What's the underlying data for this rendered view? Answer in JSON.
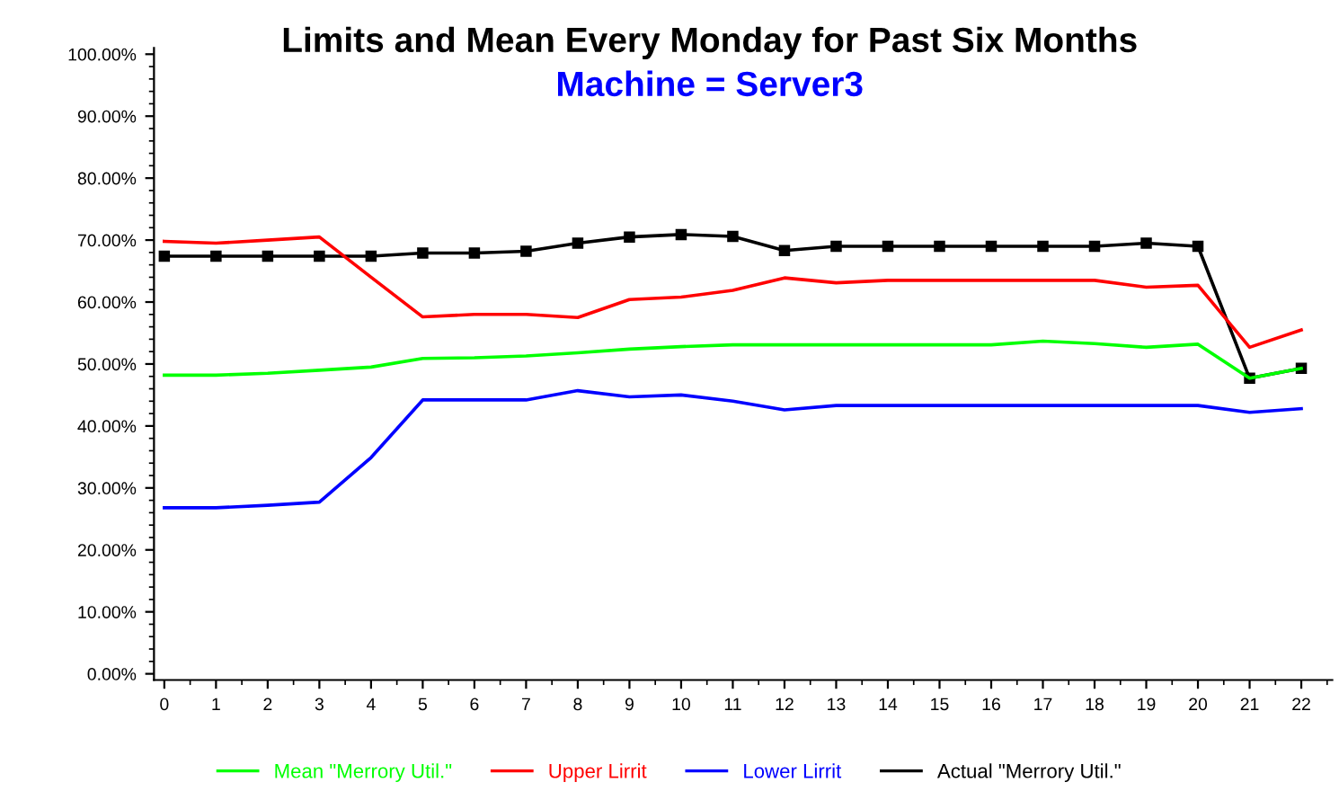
{
  "chart_data": {
    "type": "line",
    "title": "Limits and Mean Every Monday for Past Six Months",
    "subtitle": "Machine = Server3",
    "x": [
      0,
      1,
      2,
      3,
      4,
      5,
      6,
      7,
      8,
      9,
      10,
      11,
      12,
      13,
      14,
      15,
      16,
      17,
      18,
      19,
      20,
      21,
      22
    ],
    "series": [
      {
        "name": "Mean \"Merrory Util.\"",
        "color": "#00ff00",
        "marker": "none",
        "values": [
          48.2,
          48.2,
          48.5,
          49.0,
          49.5,
          50.9,
          51.0,
          51.3,
          51.8,
          52.4,
          52.8,
          53.1,
          53.1,
          53.1,
          53.1,
          53.1,
          53.1,
          53.7,
          53.3,
          52.7,
          53.2,
          47.7,
          49.3
        ]
      },
      {
        "name": "Upper Lirrit",
        "color": "#ff0000",
        "marker": "none",
        "values": [
          69.8,
          69.5,
          70.0,
          70.5,
          64.0,
          57.6,
          58.0,
          58.0,
          57.5,
          60.4,
          60.8,
          61.9,
          63.9,
          63.1,
          63.5,
          63.5,
          63.5,
          63.5,
          63.5,
          62.4,
          62.7,
          52.7,
          55.5
        ]
      },
      {
        "name": "Lower Lirrit",
        "color": "#0000ff",
        "marker": "none",
        "values": [
          26.8,
          26.8,
          27.2,
          27.7,
          34.9,
          44.2,
          44.2,
          44.2,
          45.7,
          44.7,
          45.0,
          44.0,
          42.6,
          43.3,
          43.3,
          43.3,
          43.3,
          43.3,
          43.3,
          43.3,
          43.3,
          42.2,
          42.8
        ]
      },
      {
        "name": "Actual \"Merrory Util.\"",
        "color": "#000000",
        "marker": "square",
        "values": [
          67.4,
          67.4,
          67.4,
          67.4,
          67.4,
          67.9,
          67.9,
          68.2,
          69.5,
          70.5,
          70.9,
          70.6,
          68.3,
          69.0,
          69.0,
          69.0,
          69.0,
          69.0,
          69.0,
          69.5,
          69.0,
          47.7,
          49.3
        ]
      }
    ],
    "xlim": [
      -0.2,
      22.6
    ],
    "ylim": [
      -1,
      101
    ],
    "xticks": [
      0,
      1,
      2,
      3,
      4,
      5,
      6,
      7,
      8,
      9,
      10,
      11,
      12,
      13,
      14,
      15,
      16,
      17,
      18,
      19,
      20,
      21,
      22
    ],
    "yticks": [
      {
        "value": 0,
        "label": "0.00%"
      },
      {
        "value": 10,
        "label": "10.00%"
      },
      {
        "value": 20,
        "label": "20.00%"
      },
      {
        "value": 30,
        "label": "30.00%"
      },
      {
        "value": 40,
        "label": "40.00%"
      },
      {
        "value": 50,
        "label": "50.00%"
      },
      {
        "value": 60,
        "label": "60.00%"
      },
      {
        "value": 70,
        "label": "70.00%"
      },
      {
        "value": 80,
        "label": "80.00%"
      },
      {
        "value": 90,
        "label": "90.00%"
      },
      {
        "value": 100,
        "label": "100.00%"
      }
    ],
    "grid": false,
    "legend": "bottom",
    "line_style": "solid"
  }
}
